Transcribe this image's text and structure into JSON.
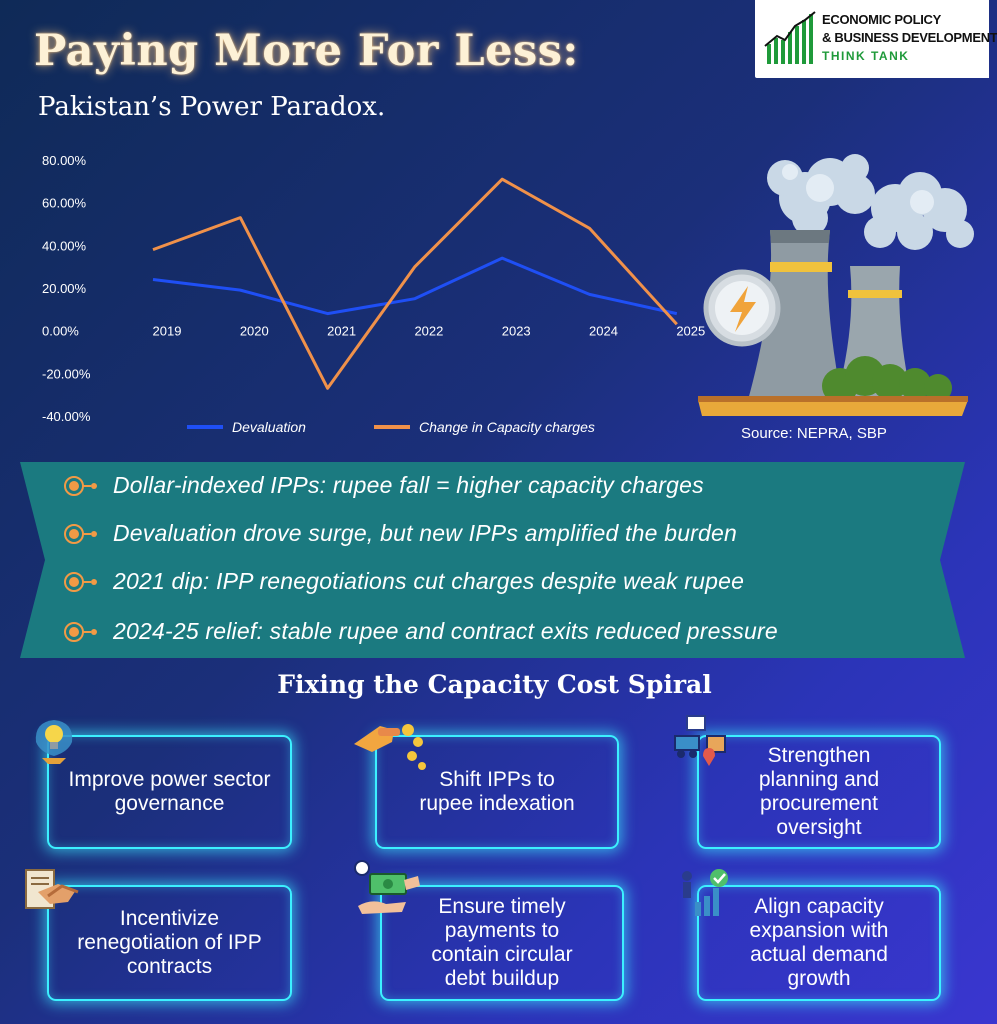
{
  "header": {
    "title": "Paying More For Less:",
    "subtitle": "Pakistan’s Power Paradox."
  },
  "logo": {
    "line1": "ECONOMIC POLICY",
    "line2": "& BUSINESS DEVELOPMENT",
    "line3": "THINK TANK",
    "icon": "growth-bars-logo"
  },
  "chart_data": {
    "type": "line",
    "title": "",
    "xlabel": "",
    "ylabel": "",
    "categories": [
      "2019",
      "2020",
      "2021",
      "2022",
      "2023",
      "2024",
      "2025"
    ],
    "y_ticks": [
      "80.00%",
      "60.00%",
      "40.00%",
      "20.00%",
      "0.00%",
      "-20.00%",
      "-40.00%"
    ],
    "ylim": [
      -40,
      80
    ],
    "grid": false,
    "legend_position": "bottom",
    "series": [
      {
        "name": "Devaluation",
        "color": "#1f4ff5",
        "values": [
          24,
          19,
          8,
          15,
          34,
          17,
          8
        ]
      },
      {
        "name": "Change in Capacity charges",
        "color": "#f0914a",
        "values": [
          38,
          53,
          -27,
          30,
          71,
          48,
          3
        ]
      }
    ]
  },
  "source": "Source: NEPRA, SBP",
  "illustration": "power-plant-cooling-towers-icon",
  "bullets": [
    {
      "text": "Dollar-indexed IPPs: rupee fall = higher capacity charges"
    },
    {
      "text": "Devaluation drove surge, but new IPPs amplified the burden"
    },
    {
      "text": "2021 dip: IPP renegotiations cut charges despite weak rupee"
    },
    {
      "text": "2024-25 relief: stable rupee and contract exits reduced pressure"
    }
  ],
  "colors": {
    "accent_orange": "#f0914a",
    "banner_teal": "#1b7a80",
    "card_glow": "#3cf0ff"
  },
  "fixes": {
    "title": "Fixing the Capacity Cost Spiral",
    "cards": [
      {
        "label": "Improve power sector governance",
        "icon": "lightbulb-icon"
      },
      {
        "label": "Shift IPPs to rupee indexation",
        "icon": "coin-hand-icon"
      },
      {
        "label": "Strengthen planning and procurement oversight",
        "icon": "logistics-icon"
      },
      {
        "label": "Incentivize renegotiation of IPP contracts",
        "icon": "handshake-contract-icon"
      },
      {
        "label": "Ensure timely payments to contain circular debt buildup",
        "icon": "money-payment-icon"
      },
      {
        "label": "Align capacity expansion with actual demand growth",
        "icon": "growth-chart-icon"
      }
    ]
  }
}
